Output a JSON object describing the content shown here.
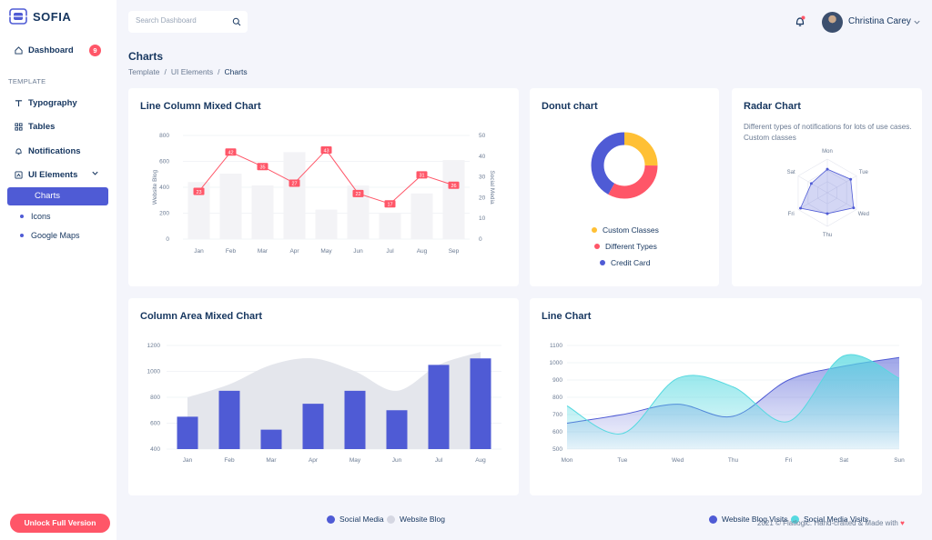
{
  "brand": {
    "name": "SOFIA"
  },
  "sidebar": {
    "dashboard": {
      "label": "Dashboard",
      "badge": "9"
    },
    "section_label": "TEMPLATE",
    "items": [
      {
        "label": "Typography",
        "icon": "text-icon"
      },
      {
        "label": "Tables",
        "icon": "grid-icon"
      },
      {
        "label": "Notifications",
        "icon": "bell-icon"
      },
      {
        "label": "UI Elements",
        "icon": "layout-icon"
      }
    ],
    "sub_items": [
      {
        "label": "Charts",
        "active": true
      },
      {
        "label": "Icons"
      },
      {
        "label": "Google Maps"
      }
    ],
    "unlock_label": "Unlock Full Version"
  },
  "header": {
    "search_placeholder": "Search Dashboard",
    "user_name": "Christina Carey"
  },
  "page": {
    "title": "Charts",
    "breadcrumb": [
      "Template",
      "UI Elements",
      "Charts"
    ]
  },
  "colors": {
    "primary": "#4f5bd5",
    "accent": "#ff5668",
    "yellow": "#ffc035",
    "cyan": "#56d9e0",
    "grey_bar": "#f3f3f6"
  },
  "line_column_chart": {
    "title": "Line Column Mixed Chart",
    "chart_data": {
      "type": "bar",
      "categories": [
        "Jan",
        "Feb",
        "Mar",
        "Apr",
        "May",
        "Jun",
        "Jul",
        "Aug",
        "Sep"
      ],
      "ylabel": "Website Blog",
      "y2label": "Social Media",
      "ylim": [
        0,
        800
      ],
      "y2lim": [
        0,
        50
      ],
      "yticks": [
        0,
        200,
        400,
        600,
        800
      ],
      "y2ticks": [
        0,
        10,
        20,
        30,
        40,
        50
      ],
      "series": [
        {
          "name": "Website Blog",
          "type": "bar",
          "values": [
            440,
            505,
            414,
            671,
            227,
            413,
            201,
            352,
            610
          ]
        },
        {
          "name": "Social Media",
          "type": "line",
          "values": [
            23,
            42,
            35,
            27,
            43,
            22,
            17,
            31,
            26
          ]
        }
      ]
    }
  },
  "donut_chart": {
    "title": "Donut chart",
    "chart_data": {
      "type": "pie",
      "categories": [
        "Custom Classes",
        "Different Types",
        "Credit Card"
      ],
      "values": [
        25,
        33,
        42
      ],
      "colors": [
        "#ffc035",
        "#ff5668",
        "#4f5bd5"
      ]
    }
  },
  "radar_chart": {
    "title": "Radar Chart",
    "description": "Different types of notifications for lots of use cases. Custom classes",
    "chart_data": {
      "type": "radar",
      "categories": [
        "Mon",
        "Tue",
        "Wed",
        "Thu",
        "Fri",
        "Sat"
      ],
      "values": [
        0.7,
        0.8,
        0.9,
        0.62,
        0.92,
        0.55
      ]
    }
  },
  "column_area_chart": {
    "title": "Column Area Mixed Chart",
    "chart_data": {
      "type": "bar",
      "categories": [
        "Jan",
        "Feb",
        "Mar",
        "Apr",
        "May",
        "Jun",
        "Jul",
        "Aug"
      ],
      "ylim": [
        400,
        1200
      ],
      "yticks": [
        400,
        600,
        800,
        1000,
        1200
      ],
      "series": [
        {
          "name": "Social Media",
          "type": "bar",
          "values": [
            650,
            850,
            550,
            750,
            850,
            700,
            1050,
            1100
          ]
        },
        {
          "name": "Website Blog",
          "type": "area",
          "values": [
            800,
            900,
            1050,
            1100,
            1000,
            850,
            1050,
            1150
          ]
        }
      ]
    },
    "legend": [
      "Social Media",
      "Website Blog"
    ]
  },
  "line_chart": {
    "title": "Line Chart",
    "chart_data": {
      "type": "area",
      "categories": [
        "Mon",
        "Tue",
        "Wed",
        "Thu",
        "Fri",
        "Sat",
        "Sun"
      ],
      "ylim": [
        500,
        1100
      ],
      "yticks": [
        500,
        600,
        700,
        800,
        900,
        1000,
        1100
      ],
      "series": [
        {
          "name": "Website Blog Visits",
          "values": [
            650,
            700,
            760,
            690,
            900,
            980,
            1030
          ]
        },
        {
          "name": "Social Media Visits",
          "values": [
            750,
            590,
            910,
            860,
            660,
            1040,
            910
          ]
        }
      ]
    },
    "legend": [
      "Website Blog Visits",
      "Social Media Visits"
    ]
  },
  "footer": {
    "text": "2021 © Flatlogic. Hand-crafted & Made with",
    "heart": "♥"
  }
}
